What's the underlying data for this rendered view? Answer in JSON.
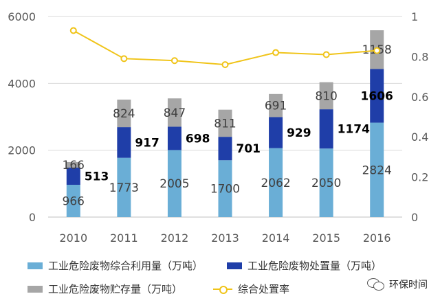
{
  "chart_data": {
    "type": "bar",
    "categories": [
      "2010",
      "2011",
      "2012",
      "2013",
      "2014",
      "2015",
      "2016"
    ],
    "series": [
      {
        "name": "工业危险废物综合利用量（万吨）",
        "color": "#6aaed6",
        "values": [
          966,
          1773,
          2005,
          1700,
          2062,
          2050,
          2824
        ]
      },
      {
        "name": "工业危险废物处置量（万吨）",
        "color": "#1f3ea8",
        "values": [
          513,
          917,
          698,
          701,
          929,
          1174,
          1606
        ]
      },
      {
        "name": "工业危险废物贮存量（万吨）",
        "color": "#a6a6a6",
        "values": [
          166,
          824,
          847,
          811,
          691,
          810,
          1158
        ]
      }
    ],
    "line_series": {
      "name": "综合处置率",
      "color": "#f0c419",
      "values": [
        0.93,
        0.79,
        0.78,
        0.76,
        0.82,
        0.81,
        0.83
      ]
    },
    "ylim": [
      0,
      6000
    ],
    "yticks": [
      "0",
      "2000",
      "4000",
      "6000"
    ],
    "y2lim": [
      0,
      1
    ],
    "y2ticks": [
      "0",
      "0.2",
      "0.4",
      "0.6",
      "0.8",
      "1"
    ],
    "grid": true,
    "legend_position": "bottom"
  },
  "watermark": {
    "text": "环保时间",
    "icon": "wechat-icon"
  }
}
